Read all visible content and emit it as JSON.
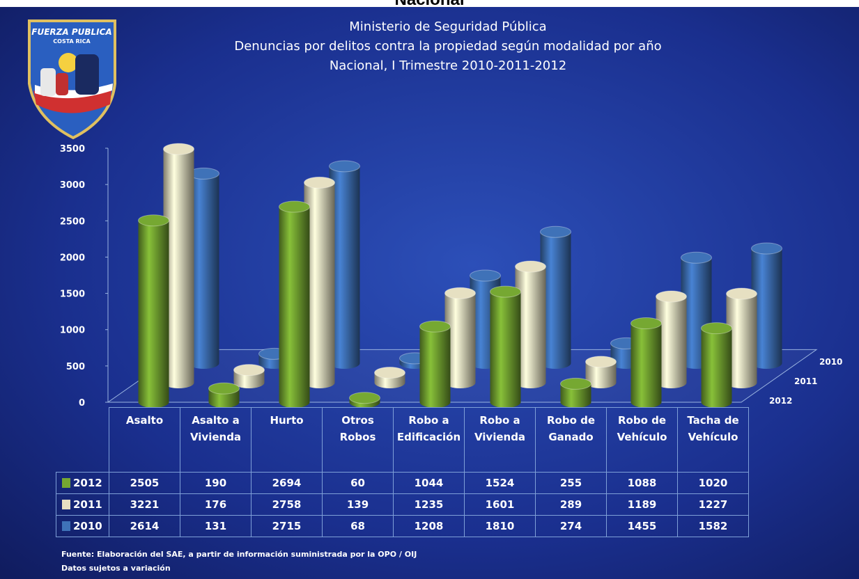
{
  "page_header": "Nacional",
  "logo": {
    "line1": "FUERZA PUBLICA",
    "line2": "COSTA RICA"
  },
  "chart_data": {
    "type": "bar3d",
    "title": [
      "Ministerio de Seguridad Pública",
      "Denuncias por delitos contra la propiedad según modalidad por año",
      "Nacional, I Trimestre 2010-2011-2012"
    ],
    "categories": [
      "Asalto",
      "Asalto a Vivienda",
      "Hurto",
      "Otros Robos",
      "Robo a Edificación",
      "Robo a Vivienda",
      "Robo de Ganado",
      "Robo de Vehículo",
      "Tacha de Vehículo"
    ],
    "series": [
      {
        "name": "2012",
        "color": "#76a832",
        "values": [
          2505,
          190,
          2694,
          60,
          1044,
          1524,
          255,
          1088,
          1020
        ]
      },
      {
        "name": "2011",
        "color": "#e6e0c2",
        "values": [
          3221,
          176,
          2758,
          139,
          1235,
          1601,
          289,
          1189,
          1227
        ]
      },
      {
        "name": "2010",
        "color": "#3f72b8",
        "values": [
          2614,
          131,
          2715,
          68,
          1208,
          1810,
          274,
          1455,
          1582
        ]
      }
    ],
    "ylim": [
      0,
      3500
    ],
    "yticks": [
      0,
      500,
      1000,
      1500,
      2000,
      2500,
      3000,
      3500
    ],
    "grid": false
  },
  "notes": [
    "Fuente: Elaboración del SAE, a partir de información suministrada por la OPO / OIJ",
    "Datos sujetos a variación"
  ]
}
